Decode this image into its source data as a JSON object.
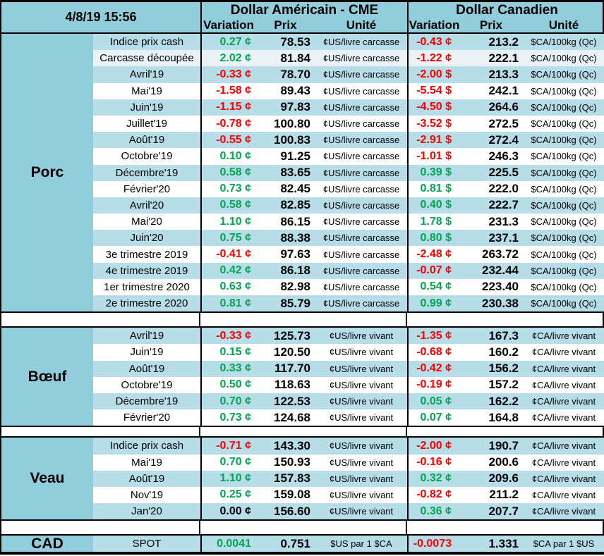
{
  "meta": {
    "timestamp": "4/8/19 15:56"
  },
  "colors": {
    "positive_green": "#00a651",
    "negative_red": "#ff0000",
    "section_blue": "#92cddc",
    "band_blue": "#b7dee8",
    "band_gray": "#eaf2f6",
    "border_black": "#000000"
  },
  "header": {
    "us_title": "Dollar Américain - CME",
    "ca_title": "Dollar Canadien",
    "col_variation": "Variation",
    "col_prix": "Prix",
    "col_unite": "Unité"
  },
  "sections": [
    {
      "name": "Porc",
      "rows": [
        {
          "label": "Indice prix cash",
          "band": "blue",
          "us": {
            "var": "0.27 ¢",
            "dir": "up",
            "prix": "78.53",
            "unit": "¢US/livre carcasse"
          },
          "ca": {
            "var": "-0.43 ¢",
            "dir": "down",
            "prix": "213.2",
            "unit": "$CA/100kg (Qc)"
          }
        },
        {
          "label": "Carcasse découpée",
          "band": "gray",
          "us": {
            "var": "2.02 ¢",
            "dir": "up",
            "prix": "81.84",
            "unit": "¢US/livre carcasse"
          },
          "ca": {
            "var": "-1.22 ¢",
            "dir": "down",
            "prix": "222.1",
            "unit": "$CA/100kg (Qc)"
          }
        },
        {
          "label": "Avril'19",
          "band": "blue",
          "us": {
            "var": "-0.33 ¢",
            "dir": "down",
            "prix": "78.70",
            "unit": "¢US/livre carcasse"
          },
          "ca": {
            "var": "-2.00 $",
            "dir": "down",
            "prix": "213.3",
            "unit": "$CA/100kg (Qc)"
          }
        },
        {
          "label": "Mai'19",
          "band": "white",
          "us": {
            "var": "-1.58 ¢",
            "dir": "down",
            "prix": "89.43",
            "unit": "¢US/livre carcasse"
          },
          "ca": {
            "var": "-5.54 $",
            "dir": "down",
            "prix": "242.1",
            "unit": "$CA/100kg (Qc)"
          }
        },
        {
          "label": "Juin'19",
          "band": "blue",
          "us": {
            "var": "-1.15 ¢",
            "dir": "down",
            "prix": "97.83",
            "unit": "¢US/livre carcasse"
          },
          "ca": {
            "var": "-4.50 $",
            "dir": "down",
            "prix": "264.6",
            "unit": "$CA/100kg (Qc)"
          }
        },
        {
          "label": "Juillet'19",
          "band": "white",
          "us": {
            "var": "-0.78 ¢",
            "dir": "down",
            "prix": "100.80",
            "unit": "¢US/livre carcasse"
          },
          "ca": {
            "var": "-3.52 $",
            "dir": "down",
            "prix": "272.5",
            "unit": "$CA/100kg (Qc)"
          }
        },
        {
          "label": "Août'19",
          "band": "blue",
          "us": {
            "var": "-0.55 ¢",
            "dir": "down",
            "prix": "100.83",
            "unit": "¢US/livre carcasse"
          },
          "ca": {
            "var": "-2.91 $",
            "dir": "down",
            "prix": "272.4",
            "unit": "$CA/100kg (Qc)"
          }
        },
        {
          "label": "Octobre'19",
          "band": "white",
          "us": {
            "var": "0.10 ¢",
            "dir": "up",
            "prix": "91.25",
            "unit": "¢US/livre carcasse"
          },
          "ca": {
            "var": "-1.01 $",
            "dir": "down",
            "prix": "246.3",
            "unit": "$CA/100kg (Qc)"
          }
        },
        {
          "label": "Décembre'19",
          "band": "blue",
          "us": {
            "var": "0.58 ¢",
            "dir": "up",
            "prix": "83.65",
            "unit": "¢US/livre carcasse"
          },
          "ca": {
            "var": "0.39 $",
            "dir": "up",
            "prix": "225.5",
            "unit": "$CA/100kg (Qc)"
          }
        },
        {
          "label": "Février'20",
          "band": "white",
          "us": {
            "var": "0.73 ¢",
            "dir": "up",
            "prix": "82.45",
            "unit": "¢US/livre carcasse"
          },
          "ca": {
            "var": "0.81 $",
            "dir": "up",
            "prix": "222.0",
            "unit": "$CA/100kg (Qc)"
          }
        },
        {
          "label": "Avril'20",
          "band": "blue",
          "us": {
            "var": "0.58 ¢",
            "dir": "up",
            "prix": "82.85",
            "unit": "¢US/livre carcasse"
          },
          "ca": {
            "var": "0.40 $",
            "dir": "up",
            "prix": "222.7",
            "unit": "$CA/100kg (Qc)"
          }
        },
        {
          "label": "Mai'20",
          "band": "white",
          "us": {
            "var": "1.10 ¢",
            "dir": "up",
            "prix": "86.15",
            "unit": "¢US/livre carcasse"
          },
          "ca": {
            "var": "1.78 $",
            "dir": "up",
            "prix": "231.3",
            "unit": "$CA/100kg (Qc)"
          }
        },
        {
          "label": "Juin'20",
          "band": "blue",
          "us": {
            "var": "0.75 ¢",
            "dir": "up",
            "prix": "88.38",
            "unit": "¢US/livre carcasse"
          },
          "ca": {
            "var": "0.80 $",
            "dir": "up",
            "prix": "237.1",
            "unit": "$CA/100kg (Qc)"
          }
        },
        {
          "label": "3e trimestre 2019",
          "band": "white",
          "us": {
            "var": "-0.41 ¢",
            "dir": "down",
            "prix": "97.63",
            "unit": "¢US/livre carcasse"
          },
          "ca": {
            "var": "-2.48 ¢",
            "dir": "down",
            "prix": "263.72",
            "unit": "$CA/100kg (Qc)"
          }
        },
        {
          "label": "4e trimestre 2019",
          "band": "blue",
          "us": {
            "var": "0.42 ¢",
            "dir": "up",
            "prix": "86.18",
            "unit": "¢US/livre carcasse"
          },
          "ca": {
            "var": "-0.07 ¢",
            "dir": "down",
            "prix": "232.44",
            "unit": "$CA/100kg (Qc)"
          }
        },
        {
          "label": "1er trimestre 2020",
          "band": "white",
          "us": {
            "var": "0.63 ¢",
            "dir": "up",
            "prix": "82.98",
            "unit": "¢US/livre carcasse"
          },
          "ca": {
            "var": "0.54 ¢",
            "dir": "up",
            "prix": "223.40",
            "unit": "$CA/100kg (Qc)"
          }
        },
        {
          "label": "2e trimestre 2020",
          "band": "blue",
          "us": {
            "var": "0.81 ¢",
            "dir": "up",
            "prix": "85.79",
            "unit": "¢US/livre carcasse"
          },
          "ca": {
            "var": "0.99 ¢",
            "dir": "up",
            "prix": "230.38",
            "unit": "$CA/100kg (Qc)"
          }
        }
      ]
    },
    {
      "name": "Bœuf",
      "rows": [
        {
          "label": "Avril'19",
          "band": "blue",
          "us": {
            "var": "-0.33 ¢",
            "dir": "down",
            "prix": "125.73",
            "unit": "¢US/livre vivant"
          },
          "ca": {
            "var": "-1.35 ¢",
            "dir": "down",
            "prix": "167.3",
            "unit": "¢CA/livre vivant"
          }
        },
        {
          "label": "Juin'19",
          "band": "white",
          "us": {
            "var": "0.15 ¢",
            "dir": "up",
            "prix": "120.50",
            "unit": "¢US/livre vivant"
          },
          "ca": {
            "var": "-0.68 ¢",
            "dir": "down",
            "prix": "160.2",
            "unit": "¢CA/livre vivant"
          }
        },
        {
          "label": "Août'19",
          "band": "blue",
          "us": {
            "var": "0.33 ¢",
            "dir": "up",
            "prix": "117.70",
            "unit": "¢US/livre vivant"
          },
          "ca": {
            "var": "-0.42 ¢",
            "dir": "down",
            "prix": "156.2",
            "unit": "¢CA/livre vivant"
          }
        },
        {
          "label": "Octobre'19",
          "band": "white",
          "us": {
            "var": "0.50 ¢",
            "dir": "up",
            "prix": "118.63",
            "unit": "¢US/livre vivant"
          },
          "ca": {
            "var": "-0.19 ¢",
            "dir": "down",
            "prix": "157.2",
            "unit": "¢CA/livre vivant"
          }
        },
        {
          "label": "Décembre'19",
          "band": "blue",
          "us": {
            "var": "0.70 ¢",
            "dir": "up",
            "prix": "122.53",
            "unit": "¢US/livre vivant"
          },
          "ca": {
            "var": "0.05 ¢",
            "dir": "up",
            "prix": "162.2",
            "unit": "¢CA/livre vivant"
          }
        },
        {
          "label": "Février'20",
          "band": "white",
          "us": {
            "var": "0.73 ¢",
            "dir": "up",
            "prix": "124.68",
            "unit": "¢US/livre vivant"
          },
          "ca": {
            "var": "0.07 ¢",
            "dir": "up",
            "prix": "164.8",
            "unit": "¢CA/livre vivant"
          }
        }
      ]
    },
    {
      "name": "Veau",
      "rows": [
        {
          "label": "Indice prix cash",
          "band": "blue",
          "us": {
            "var": "-0.71 ¢",
            "dir": "down",
            "prix": "143.30",
            "unit": "¢US/livre vivant"
          },
          "ca": {
            "var": "-2.00 ¢",
            "dir": "down",
            "prix": "190.7",
            "unit": "¢CA/livre vivant"
          }
        },
        {
          "label": "Mai'19",
          "band": "white",
          "us": {
            "var": "0.70 ¢",
            "dir": "up",
            "prix": "150.93",
            "unit": "¢US/livre vivant"
          },
          "ca": {
            "var": "-0.16 ¢",
            "dir": "down",
            "prix": "200.6",
            "unit": "¢CA/livre vivant"
          }
        },
        {
          "label": "Août'19",
          "band": "blue",
          "us": {
            "var": "1.10 ¢",
            "dir": "up",
            "prix": "157.83",
            "unit": "¢US/livre vivant"
          },
          "ca": {
            "var": "0.32 ¢",
            "dir": "up",
            "prix": "209.6",
            "unit": "¢CA/livre vivant"
          }
        },
        {
          "label": "Nov'19",
          "band": "white",
          "us": {
            "var": "0.25 ¢",
            "dir": "up",
            "prix": "159.08",
            "unit": "¢US/livre vivant"
          },
          "ca": {
            "var": "-0.82 ¢",
            "dir": "down",
            "prix": "211.2",
            "unit": "¢CA/livre vivant"
          }
        },
        {
          "label": "Jan'20",
          "band": "blue",
          "us": {
            "var": "0.00 ¢",
            "dir": "flat",
            "prix": "156.60",
            "unit": "¢US/livre vivant"
          },
          "ca": {
            "var": "0.36 ¢",
            "dir": "up",
            "prix": "207.7",
            "unit": "¢CA/livre vivant"
          }
        }
      ]
    },
    {
      "name": "CAD",
      "rows": [
        {
          "label": "SPOT",
          "band": "blue",
          "us": {
            "var": "0.0041",
            "dir": "up",
            "prix": "0.751",
            "unit": "$US par 1 $CA"
          },
          "ca": {
            "var": "-0.0073",
            "dir": "down",
            "prix": "1.331",
            "unit": "$CA par 1 $US"
          }
        }
      ]
    }
  ]
}
